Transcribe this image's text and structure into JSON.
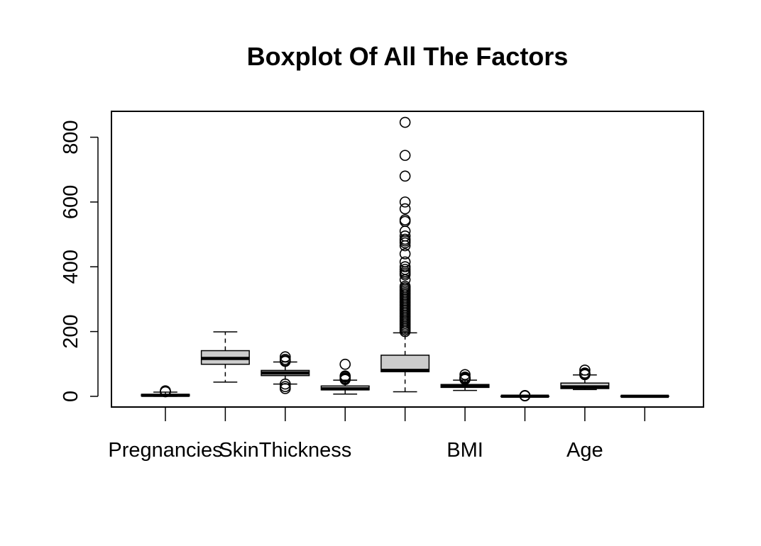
{
  "chart_data": {
    "type": "boxplot",
    "title": "Boxplot Of All The Factors",
    "xlabel": "",
    "ylabel": "",
    "ylim": [
      -33,
      880
    ],
    "yticks": [
      0,
      200,
      400,
      600,
      800
    ],
    "ytick_labels": [
      "0",
      "200",
      "400",
      "600",
      "800"
    ],
    "x_tick_labels": [
      "Pregnancies",
      "",
      "SkinThickness",
      "",
      "",
      "BMI",
      "",
      "Age",
      ""
    ],
    "grid": false,
    "legend": "none",
    "box_fill": "#cccccc",
    "stroke": "#000000",
    "boxes": [
      {
        "min": 0,
        "q1": 1,
        "median": 3,
        "q3": 6,
        "max": 13,
        "outliers": [
          14,
          15,
          17
        ]
      },
      {
        "min": 44,
        "q1": 99,
        "median": 117,
        "q3": 141,
        "max": 199,
        "outliers": []
      },
      {
        "min": 38,
        "q1": 64,
        "median": 72,
        "q3": 80,
        "max": 106,
        "outliers": [
          24,
          30,
          38,
          108,
          110,
          114,
          122
        ]
      },
      {
        "min": 7,
        "q1": 20,
        "median": 23,
        "q3": 32,
        "max": 50,
        "outliers": [
          52,
          54,
          56,
          60,
          63,
          99
        ]
      },
      {
        "min": 14,
        "q1": 76,
        "median": 80,
        "q3": 127,
        "max": 196,
        "outliers": [
          200,
          205,
          210,
          215,
          220,
          225,
          230,
          235,
          240,
          245,
          250,
          255,
          260,
          265,
          270,
          275,
          280,
          285,
          290,
          295,
          300,
          305,
          310,
          315,
          320,
          325,
          330,
          335,
          340,
          360,
          375,
          380,
          385,
          392,
          400,
          415,
          440,
          465,
          474,
          480,
          485,
          495,
          510,
          540,
          545,
          579,
          600,
          680,
          744,
          846
        ]
      },
      {
        "min": 18.2,
        "q1": 27.5,
        "median": 32.3,
        "q3": 36.6,
        "max": 50,
        "outliers": [
          52.3,
          53.2,
          55,
          57.3,
          59.4,
          67.1
        ]
      },
      {
        "min": 0.078,
        "q1": 0.244,
        "median": 0.373,
        "q3": 0.626,
        "max": 1.19,
        "outliers": [
          1.4,
          1.7,
          2.1,
          2.42
        ]
      },
      {
        "min": 21,
        "q1": 24,
        "median": 29,
        "q3": 41,
        "max": 66,
        "outliers": [
          67,
          68,
          69,
          70,
          72,
          81
        ]
      },
      {
        "min": 0,
        "q1": 0,
        "median": 0,
        "q3": 1,
        "max": 1,
        "outliers": []
      }
    ]
  }
}
